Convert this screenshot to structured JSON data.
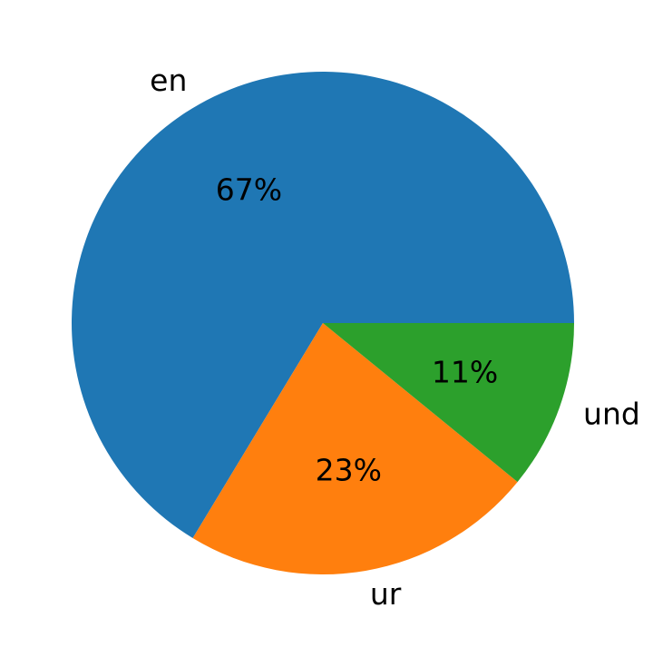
{
  "chart_data": {
    "type": "pie",
    "categories": [
      "en",
      "ur",
      "und"
    ],
    "values": [
      67,
      23,
      11
    ],
    "value_labels": [
      "67%",
      "23%",
      "11%"
    ],
    "colors": [
      "#1f77b4",
      "#ff7f0e",
      "#2ca02c"
    ]
  }
}
